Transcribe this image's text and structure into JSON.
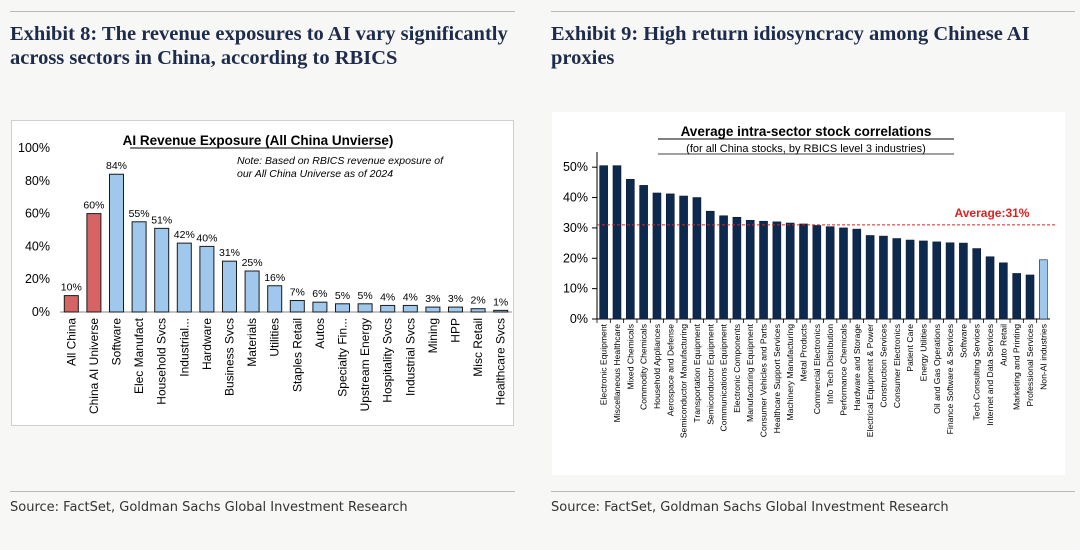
{
  "left": {
    "heading": "Exhibit 8: The revenue exposures to AI vary significantly across sectors in China, according to RBICS",
    "source": "Source: FactSet, Goldman Sachs Global Investment Research"
  },
  "right": {
    "heading": "Exhibit 9: High return idiosyncracy among Chinese AI proxies",
    "source": "Source: FactSet, Goldman Sachs Global Investment Research"
  },
  "colors": {
    "light_blue": "#9fc8ec",
    "red": "#d66464",
    "navy": "#0d2a4e",
    "average_line": "#e02020"
  },
  "chart_data": [
    {
      "type": "bar",
      "title": "AI Revenue Exposure (All China Unvierse)",
      "note_line1": "Note: Based on RBICS revenue exposure of",
      "note_line2": "our All China Universe as of 2024",
      "xlabel": "",
      "ylabel": "",
      "ylim": [
        0,
        100
      ],
      "yticks": [
        "0%",
        "20%",
        "40%",
        "60%",
        "80%",
        "100%"
      ],
      "categories": [
        "All China",
        "China AI Universe",
        "Software",
        "Elec Manufact",
        "Household Svcs",
        "Industrial...",
        "Hardware",
        "Business Svcs",
        "Materials",
        "Utilities",
        "Staples Retail",
        "Autos",
        "Specialty Fin...",
        "Upstream Energy",
        "Hospitality Svcs",
        "Industrial Svcs",
        "Mining",
        "HPP",
        "Misc Retail",
        "Healthcare Svcs"
      ],
      "values": [
        10,
        60,
        84,
        55,
        51,
        42,
        40,
        31,
        25,
        16,
        7,
        6,
        5,
        5,
        4,
        4,
        3,
        3,
        2,
        1
      ],
      "data_labels": [
        "10%",
        "60%",
        "84%",
        "55%",
        "51%",
        "42%",
        "40%",
        "31%",
        "25%",
        "16%",
        "7%",
        "6%",
        "5%",
        "5%",
        "4%",
        "4%",
        "3%",
        "3%",
        "2%",
        "1%"
      ],
      "bar_colors": [
        "red",
        "red",
        "light_blue",
        "light_blue",
        "light_blue",
        "light_blue",
        "light_blue",
        "light_blue",
        "light_blue",
        "light_blue",
        "light_blue",
        "light_blue",
        "light_blue",
        "light_blue",
        "light_blue",
        "light_blue",
        "light_blue",
        "light_blue",
        "light_blue",
        "light_blue"
      ]
    },
    {
      "type": "bar",
      "title": "Average intra-sector stock correlations",
      "subtitle": "(for all China stocks, by RBICS level 3 industries)",
      "xlabel": "",
      "ylabel": "",
      "ylim": [
        0,
        55
      ],
      "yticks": [
        "0%",
        "10%",
        "20%",
        "30%",
        "40%",
        "50%"
      ],
      "categories": [
        "Electronic Equipment",
        "Miscellaneous Healthcare",
        "Mixed Chemicals",
        "Commodity Chemicals",
        "Household Appliances",
        "Aerospace and Defense",
        "Semiconductor Manufacturing",
        "Transportation Equipment",
        "Semiconductor Equipment",
        "Communications Equipment",
        "Electronic Components",
        "Manufacturing Equipment",
        "Consumer Vehicles and Parts",
        "Healthcare Support Services",
        "Machinery Manufacturing",
        "Metal Products",
        "Commercial Electronics",
        "Info Tech Distribution",
        "Performance Chemicals",
        "Hardware and Storage",
        "Electrical Equipment & Power",
        "Construction Services",
        "Consumer Electronics",
        "Patient Care",
        "Energy Utilities",
        "Oil and Gas Operations",
        "Finance Software & Services",
        "Software",
        "Tech Consulting Services",
        "Internet and Data Services",
        "Auto Retail",
        "Marketing and Printing",
        "Professional Services",
        "Non-AI industries"
      ],
      "values": [
        50.5,
        50.5,
        46,
        44,
        41.5,
        41.2,
        40.5,
        40,
        35.5,
        34,
        33.5,
        32.5,
        32.2,
        32,
        31.6,
        31.3,
        30.8,
        30.4,
        30,
        29.6,
        27.5,
        27.3,
        26.5,
        26,
        25.7,
        25.4,
        25.1,
        25,
        23.2,
        20.5,
        18.5,
        15,
        14.5,
        19.5
      ],
      "bar_colors": [
        "navy",
        "navy",
        "navy",
        "navy",
        "navy",
        "navy",
        "navy",
        "navy",
        "navy",
        "navy",
        "navy",
        "navy",
        "navy",
        "navy",
        "navy",
        "navy",
        "navy",
        "navy",
        "navy",
        "navy",
        "navy",
        "navy",
        "navy",
        "navy",
        "navy",
        "navy",
        "navy",
        "navy",
        "navy",
        "navy",
        "navy",
        "navy",
        "navy",
        "light_blue"
      ],
      "average_value": 31,
      "average_label": "Average:31%"
    }
  ]
}
